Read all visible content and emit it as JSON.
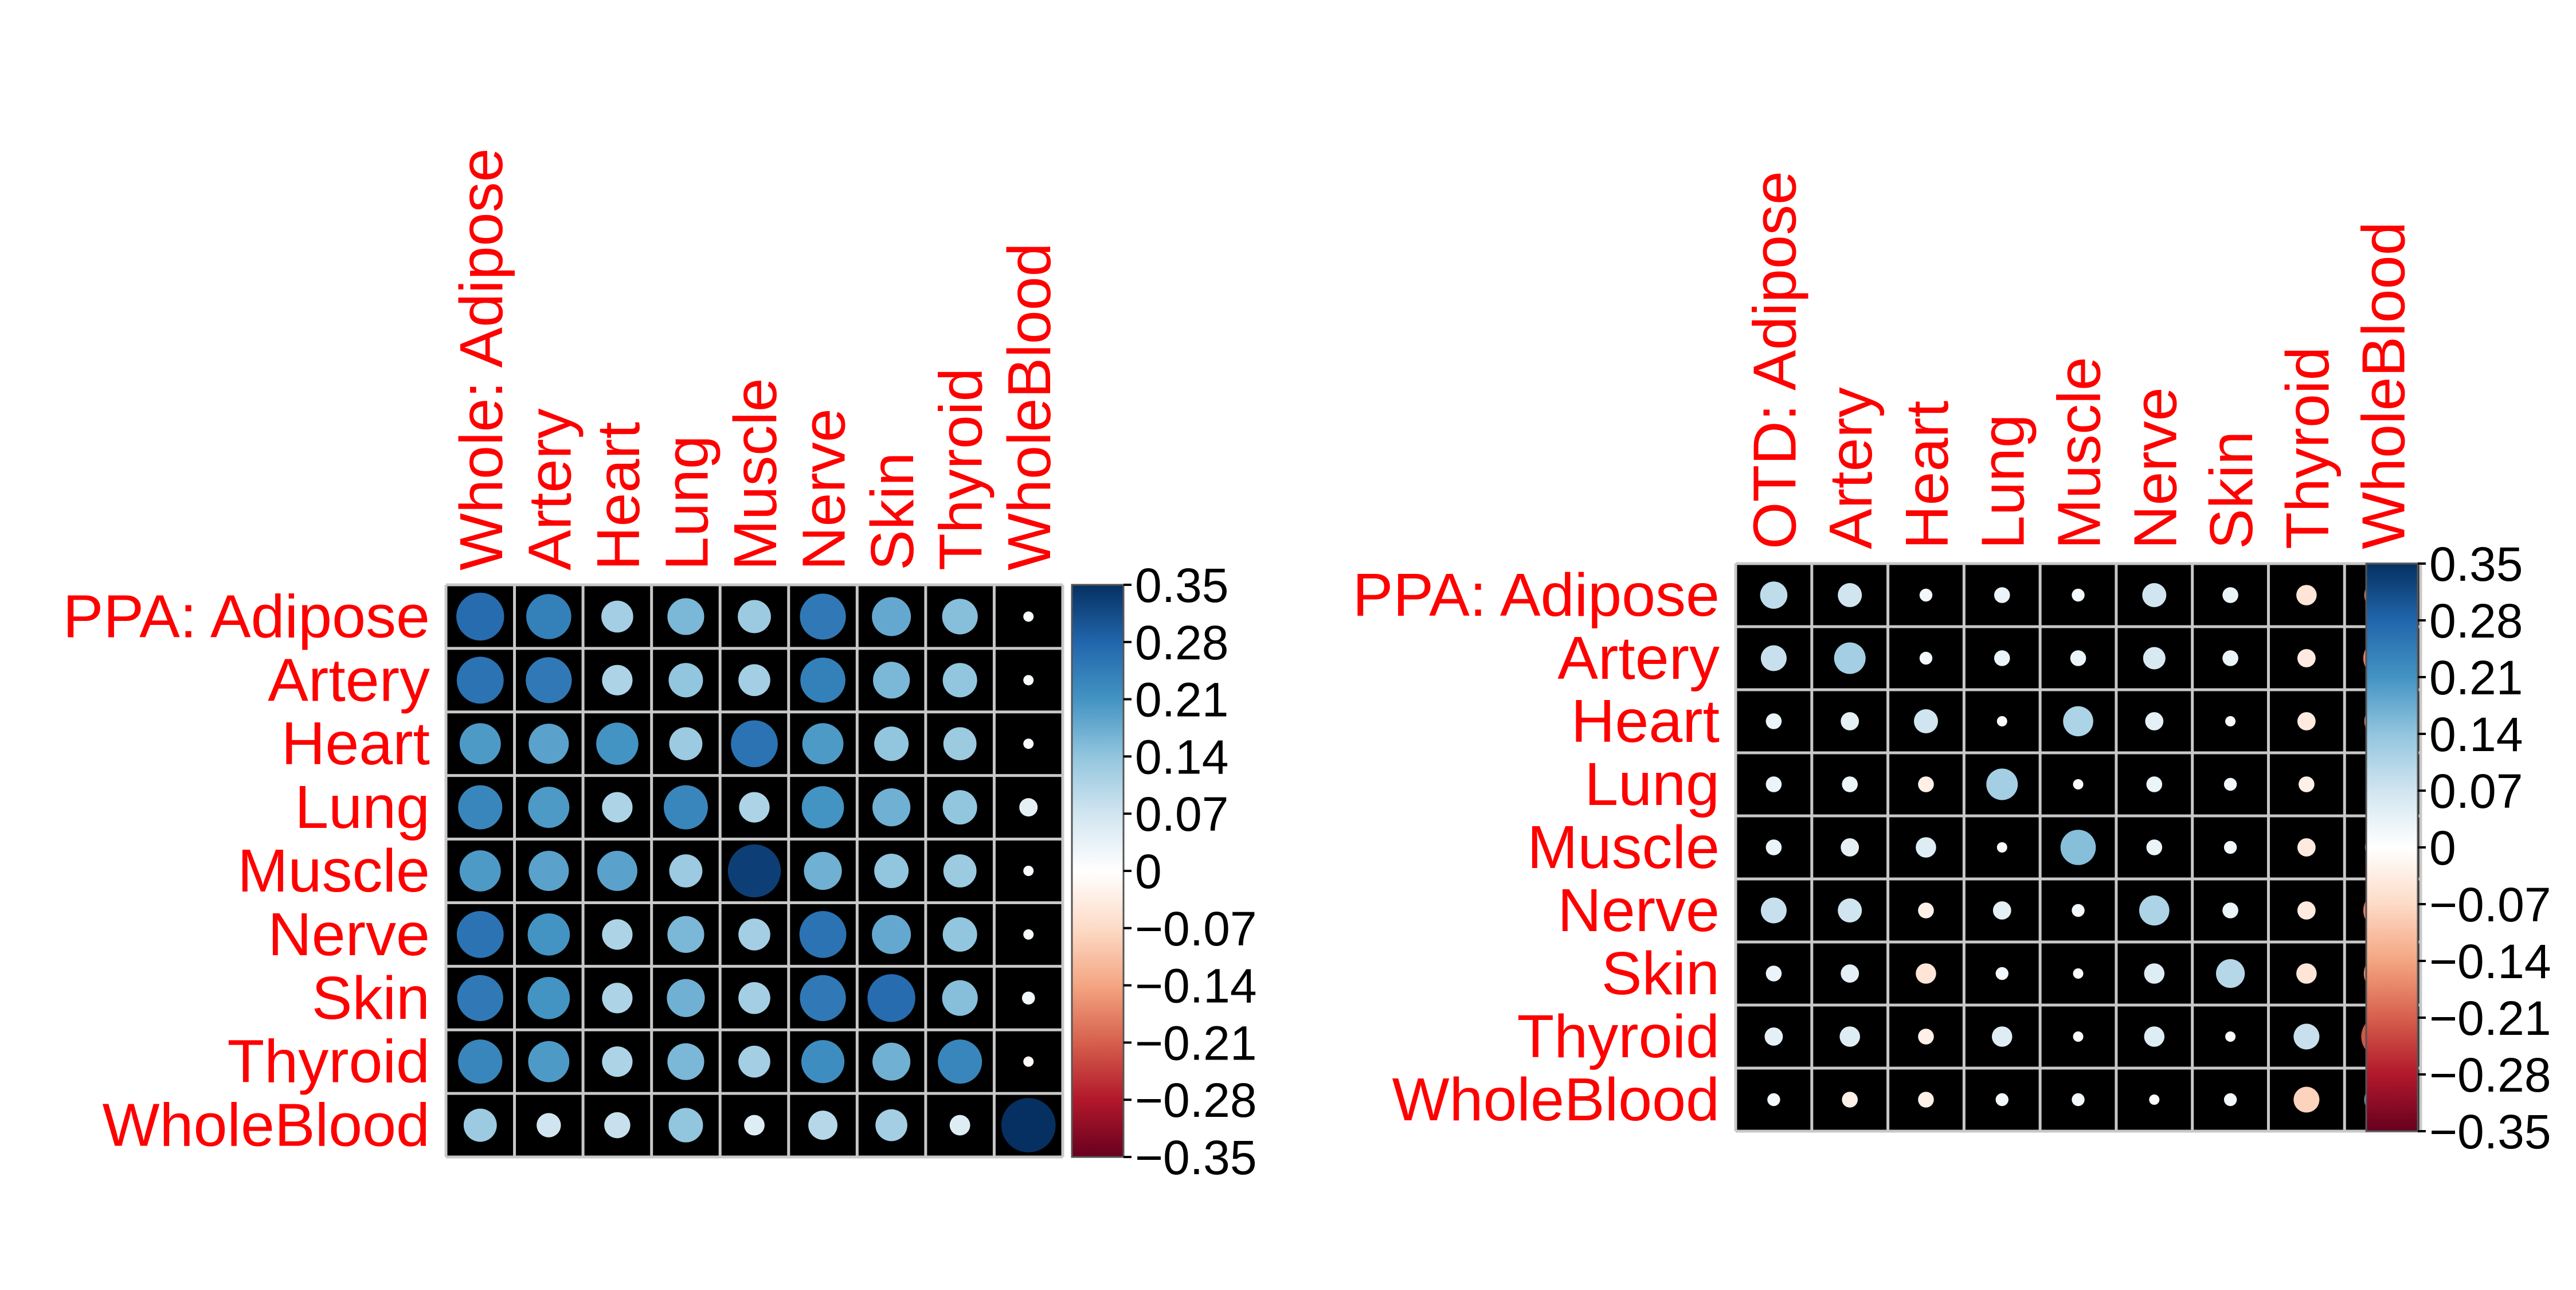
{
  "colorbar": {
    "ticks": [
      "0.35",
      "0.28",
      "0.21",
      "0.14",
      "0.07",
      "0",
      "−0.07",
      "−0.14",
      "−0.21",
      "−0.28",
      "−0.35"
    ],
    "range": [
      -0.35,
      0.35
    ],
    "low_color": "#67001f",
    "mid_color": "#ffffff",
    "high_color": "#053061"
  },
  "chart_data": [
    {
      "type": "heatmap",
      "corner_label": "PPA: Adipose",
      "rows": [
        "PPA: Adipose",
        "Artery",
        "Heart",
        "Lung",
        "Muscle",
        "Nerve",
        "Skin",
        "Thyroid",
        "WholeBlood"
      ],
      "columns": [
        "Whole: Adipose",
        "Artery",
        "Heart",
        "Lung",
        "Muscle",
        "Nerve",
        "Skin",
        "Thyroid",
        "WholeBlood"
      ],
      "scale": [
        -0.35,
        0.35
      ],
      "background": "#000000",
      "values": [
        [
          0.27,
          0.24,
          0.12,
          0.16,
          0.13,
          0.25,
          0.18,
          0.15,
          0.01
        ],
        [
          0.26,
          0.25,
          0.11,
          0.14,
          0.12,
          0.24,
          0.16,
          0.14,
          0.01
        ],
        [
          0.2,
          0.19,
          0.21,
          0.13,
          0.26,
          0.2,
          0.14,
          0.13,
          0.01
        ],
        [
          0.23,
          0.2,
          0.11,
          0.23,
          0.11,
          0.21,
          0.17,
          0.14,
          0.04
        ],
        [
          0.2,
          0.19,
          0.19,
          0.13,
          0.33,
          0.17,
          0.14,
          0.13,
          0.01
        ],
        [
          0.26,
          0.21,
          0.11,
          0.16,
          0.12,
          0.26,
          0.18,
          0.14,
          0.01
        ],
        [
          0.25,
          0.21,
          0.11,
          0.17,
          0.12,
          0.25,
          0.27,
          0.15,
          0.02
        ],
        [
          0.23,
          0.2,
          0.11,
          0.16,
          0.12,
          0.22,
          0.17,
          0.23,
          -0.01
        ],
        [
          0.13,
          0.07,
          0.08,
          0.14,
          0.05,
          0.1,
          0.12,
          0.05,
          0.35
        ]
      ]
    },
    {
      "type": "heatmap",
      "rows": [
        "PPA: Adipose",
        "Artery",
        "Heart",
        "Lung",
        "Muscle",
        "Nerve",
        "Skin",
        "Thyroid",
        "WholeBlood"
      ],
      "columns": [
        "OTD: Adipose",
        "Artery",
        "Heart",
        "Lung",
        "Muscle",
        "Nerve",
        "Skin",
        "Thyroid",
        "WholeBlood"
      ],
      "scale": [
        -0.35,
        0.35
      ],
      "background": "#000000",
      "values": [
        [
          0.09,
          0.07,
          0.02,
          0.03,
          0.02,
          0.07,
          0.03,
          -0.05,
          -0.16
        ],
        [
          0.08,
          0.12,
          0.02,
          0.03,
          0.03,
          0.06,
          0.03,
          -0.04,
          -0.18
        ],
        [
          0.03,
          0.04,
          0.07,
          0.01,
          0.11,
          0.04,
          0.01,
          -0.04,
          -0.16
        ],
        [
          0.03,
          0.03,
          -0.03,
          0.12,
          0.005,
          0.03,
          0.02,
          -0.03,
          -0.14
        ],
        [
          0.03,
          0.04,
          0.05,
          0.01,
          0.15,
          0.03,
          0.02,
          -0.04,
          -0.15
        ],
        [
          0.08,
          0.07,
          -0.03,
          0.04,
          0.02,
          0.11,
          0.03,
          -0.04,
          -0.18
        ],
        [
          0.03,
          0.04,
          -0.05,
          0.02,
          0.005,
          0.05,
          0.1,
          -0.05,
          -0.17
        ],
        [
          0.04,
          0.05,
          -0.03,
          0.05,
          0.005,
          0.05,
          0.005,
          0.08,
          -0.22
        ],
        [
          0.02,
          -0.03,
          -0.03,
          0.02,
          0.02,
          0.005,
          0.02,
          -0.08,
          0.16
        ]
      ]
    }
  ]
}
